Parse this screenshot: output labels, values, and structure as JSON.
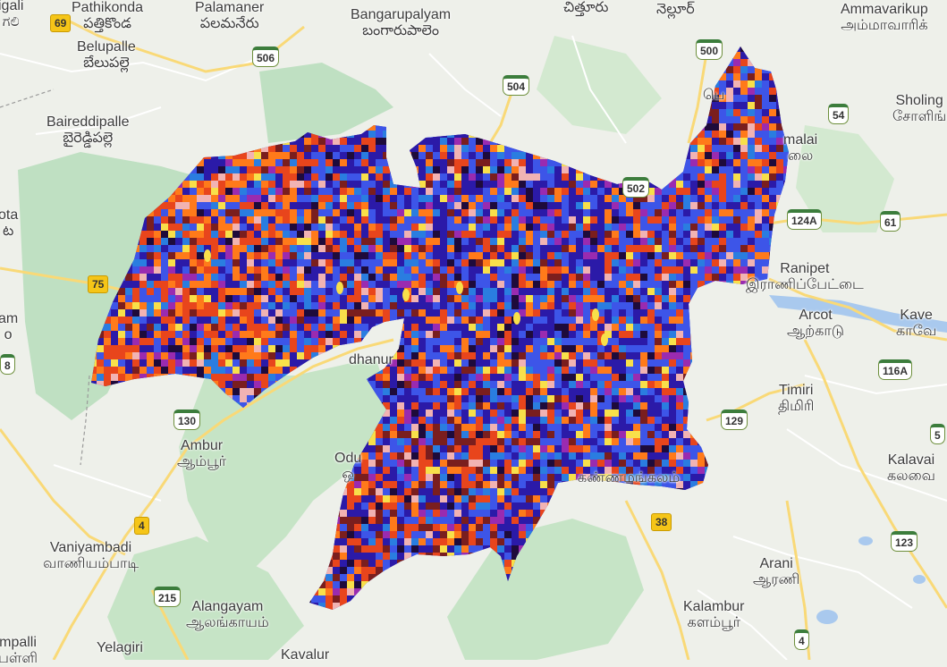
{
  "map": {
    "colors": {
      "land": "#eef0ea",
      "forest": "#bfe0c2",
      "forest_dark": "#a9d5ad",
      "road_major": "#f9d977",
      "road_minor": "#ffffff",
      "water": "#a9c9ee",
      "overlay_palette": [
        "#2b1aa8",
        "#3d55e8",
        "#e8451c",
        "#ff7a1a",
        "#7a1e1e",
        "#1e0b3b",
        "#f8e04a",
        "#f1b3b3",
        "#2a7de0",
        "#9a2bb0"
      ]
    },
    "places": [
      {
        "id": "pathikonda",
        "name": "Pathikonda",
        "local": "పత్తికొండ"
      },
      {
        "id": "palamaner",
        "name": "Palamaner",
        "local": "పలమనేరు"
      },
      {
        "id": "bangarupalyam",
        "name": "Bangarupalyam",
        "local": "బంగారుపాలెం"
      },
      {
        "id": "chittoor",
        "name": "",
        "local": "చిత్తూరు"
      },
      {
        "id": "nellore",
        "name": "",
        "local": "నెల్లూర్"
      },
      {
        "id": "ammavarikuppam",
        "name": "Ammavarikup",
        "local": "அம்மாவாரிக்"
      },
      {
        "id": "belupalle",
        "name": "Belupalle",
        "local": "బేలుపల్లె"
      },
      {
        "id": "baireddipalle",
        "name": "Baireddipalle",
        "local": "బైరెడ్డిపల్లె"
      },
      {
        "id": "sholinghur",
        "name": "Sholing",
        "local": "சோளிங்"
      },
      {
        "id": "ota",
        "name": "ota",
        "local": "ట"
      },
      {
        "id": "ranipet",
        "name": "Ranipet",
        "local": "இராணிப்பேட்டை"
      },
      {
        "id": "arcot",
        "name": "Arcot",
        "local": "ஆற்காடு"
      },
      {
        "id": "kaveripakkam",
        "name": "Kave",
        "local": "காவே"
      },
      {
        "id": "am",
        "name": "am",
        "local": "o"
      },
      {
        "id": "timiri",
        "name": "Timiri",
        "local": "திமிரி"
      },
      {
        "id": "ambur",
        "name": "Ambur",
        "local": "ஆம்பூர்"
      },
      {
        "id": "odugathur",
        "name": "Odu",
        "local": "ஒ"
      },
      {
        "id": "kannamangalam",
        "name": "",
        "local": "கண்ணமங்கலம்"
      },
      {
        "id": "kalavai",
        "name": "Kalavai",
        "local": "கலவை"
      },
      {
        "id": "vaniyambadi",
        "name": "Vaniyambadi",
        "local": "வாணியம்பாடி"
      },
      {
        "id": "arani",
        "name": "Arani",
        "local": "ஆரணி"
      },
      {
        "id": "alangayam",
        "name": "Alangayam",
        "local": "ஆலங்காயம்"
      },
      {
        "id": "kalambur",
        "name": "Kalambur",
        "local": "களம்பூர்"
      },
      {
        "id": "mpalli",
        "name": "mpalli",
        "local": "பள்ளி"
      },
      {
        "id": "yelagiri",
        "name": "Yelagiri",
        "local": ""
      },
      {
        "id": "kavalur",
        "name": "Kavalur",
        "local": ""
      },
      {
        "id": "igali",
        "name": "igali",
        "local": "ಗಲಿ"
      },
      {
        "id": "pernambut_partial",
        "name": "",
        "local": "பெ"
      },
      {
        "id": "melalai",
        "name": "malai",
        "local": "லை"
      },
      {
        "id": "dhanur",
        "name": "dhanur",
        "local": ""
      }
    ],
    "shields": [
      {
        "id": "r69",
        "label": "69",
        "kind": "sh"
      },
      {
        "id": "r506",
        "label": "506",
        "kind": "nh"
      },
      {
        "id": "r504",
        "label": "504",
        "kind": "nh"
      },
      {
        "id": "r500",
        "label": "500",
        "kind": "nh"
      },
      {
        "id": "r54",
        "label": "54",
        "kind": "nh"
      },
      {
        "id": "r502",
        "label": "502",
        "kind": "nh"
      },
      {
        "id": "r124a",
        "label": "124A",
        "kind": "nh"
      },
      {
        "id": "r61",
        "label": "61",
        "kind": "nh"
      },
      {
        "id": "r75",
        "label": "75",
        "kind": "sh"
      },
      {
        "id": "r116a",
        "label": "116A",
        "kind": "nh"
      },
      {
        "id": "r130",
        "label": "130",
        "kind": "nh"
      },
      {
        "id": "r129",
        "label": "129",
        "kind": "nh"
      },
      {
        "id": "r5",
        "label": "5",
        "kind": "nh"
      },
      {
        "id": "r4a",
        "label": "4",
        "kind": "sh"
      },
      {
        "id": "r38",
        "label": "38",
        "kind": "sh"
      },
      {
        "id": "r123",
        "label": "123",
        "kind": "nh"
      },
      {
        "id": "r215",
        "label": "215",
        "kind": "nh"
      },
      {
        "id": "r4b",
        "label": "4",
        "kind": "nh"
      },
      {
        "id": "r8",
        "label": "8",
        "kind": "nh"
      }
    ]
  }
}
